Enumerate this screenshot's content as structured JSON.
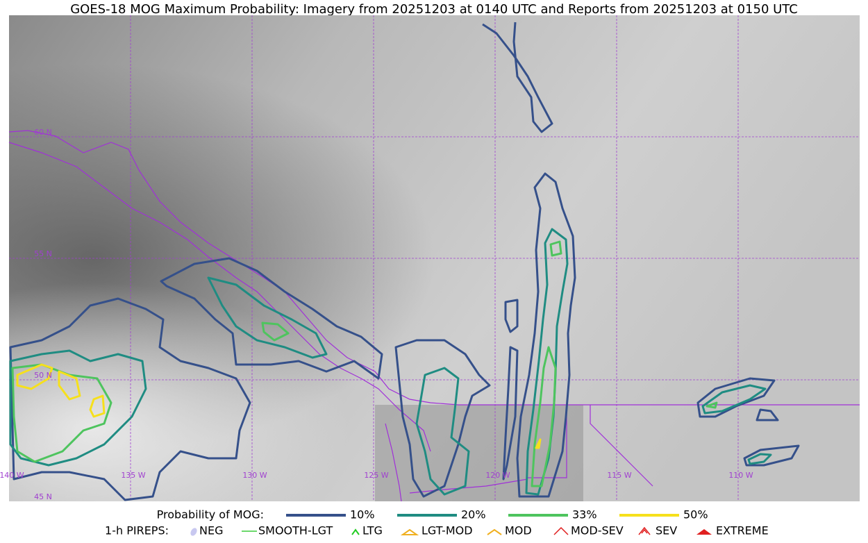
{
  "title": "GOES-18 MOG Maximum Probability: Imagery from 20251203 at 0140 UTC and Reports from 20251203 at 0150 UTC",
  "grid_labels": {
    "lat": [
      "60 N",
      "55 N",
      "50 N",
      "45 N"
    ],
    "lon": [
      "140 W",
      "135 W",
      "130 W",
      "125 W",
      "120 W",
      "115 W",
      "110 W"
    ]
  },
  "legend": {
    "mog_label": "Probability of MOG:",
    "mog_levels": [
      {
        "label": "10%",
        "color": "#35508a"
      },
      {
        "label": "20%",
        "color": "#1f8c82"
      },
      {
        "label": "33%",
        "color": "#4ec45e"
      },
      {
        "label": "50%",
        "color": "#f6e01c"
      }
    ],
    "pireps_label": "1-h PIREPS:",
    "pireps": [
      "NEG",
      "SMOOTH-LGT",
      "LTG",
      "LGT-MOD",
      "MOD",
      "MOD-SEV",
      "SEV",
      "EXTREME"
    ]
  }
}
